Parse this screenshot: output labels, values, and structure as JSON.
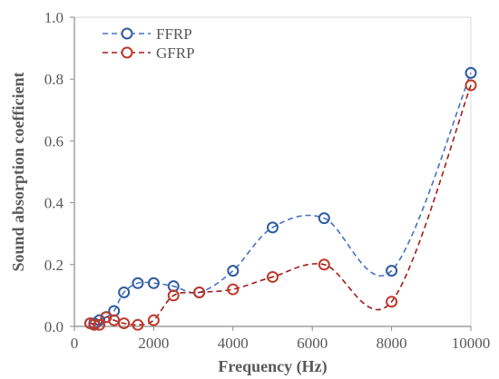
{
  "chart_data": {
    "type": "scatter",
    "xlabel": "Frequency (Hz)",
    "ylabel": "Sound absorption coefficient",
    "xlim": [
      0,
      10000
    ],
    "ylim": [
      0,
      1.0
    ],
    "x_ticks": [
      0,
      2000,
      4000,
      6000,
      8000,
      10000
    ],
    "y_ticks": [
      0.0,
      0.2,
      0.4,
      0.6,
      0.8,
      1.0
    ],
    "x_tick_labels": [
      "0",
      "2000",
      "4000",
      "6000",
      "8000",
      "10000"
    ],
    "y_tick_labels": [
      "0.0",
      "0.2",
      "0.4",
      "0.6",
      "0.8",
      "1.0"
    ],
    "grid": false,
    "legend_position": "top-left",
    "series": [
      {
        "name": "FFRP",
        "color": "#2E5C9E",
        "line_color": "#4472C4",
        "line_style": "dashed",
        "marker": "open-circle",
        "points": [
          [
            400,
            0.01
          ],
          [
            500,
            0.01
          ],
          [
            630,
            0.02
          ],
          [
            800,
            0.03
          ],
          [
            1000,
            0.05
          ],
          [
            1250,
            0.11
          ],
          [
            1600,
            0.14
          ],
          [
            2000,
            0.14
          ],
          [
            2500,
            0.13
          ],
          [
            3150,
            0.11
          ],
          [
            4000,
            0.18
          ],
          [
            5000,
            0.32
          ],
          [
            6300,
            0.35
          ],
          [
            8000,
            0.18
          ],
          [
            10000,
            0.82
          ]
        ]
      },
      {
        "name": "GFRP",
        "color": "#C0392B",
        "line_color": "#A01C1C",
        "line_style": "dashed",
        "marker": "open-circle",
        "points": [
          [
            400,
            0.01
          ],
          [
            500,
            0.005
          ],
          [
            630,
            0.005
          ],
          [
            800,
            0.03
          ],
          [
            1000,
            0.02
          ],
          [
            1250,
            0.01
          ],
          [
            1600,
            0.005
          ],
          [
            2000,
            0.02
          ],
          [
            2500,
            0.1
          ],
          [
            3150,
            0.11
          ],
          [
            4000,
            0.12
          ],
          [
            5000,
            0.16
          ],
          [
            6300,
            0.2
          ],
          [
            8000,
            0.08
          ],
          [
            10000,
            0.78
          ]
        ]
      }
    ]
  }
}
